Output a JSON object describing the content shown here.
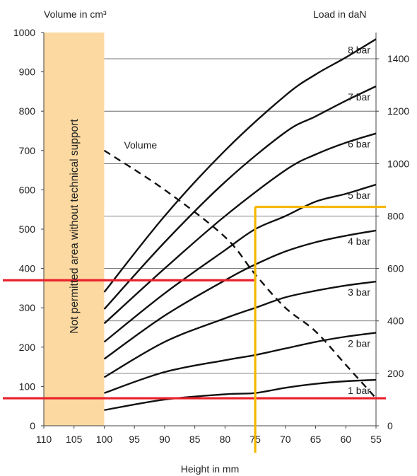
{
  "chart_data": {
    "type": "line",
    "left_axis_label": "Volume in cm³",
    "right_axis_label": "Load in daN",
    "xlabel": "Height in mm",
    "x_reversed": true,
    "xlim": [
      110,
      55
    ],
    "ylim_left": [
      0,
      1000
    ],
    "ylim_right": [
      0,
      1500
    ],
    "x_ticks": [
      110,
      105,
      100,
      95,
      90,
      85,
      80,
      75,
      70,
      65,
      60,
      55
    ],
    "left_ticks": [
      0,
      100,
      200,
      300,
      400,
      500,
      600,
      700,
      800,
      900,
      1000
    ],
    "right_ticks": [
      0,
      200,
      400,
      600,
      800,
      1000,
      1200,
      1400
    ],
    "right_gridlines": [
      200,
      400,
      600,
      800,
      1000,
      1200,
      1400
    ],
    "restricted_area": {
      "x_from": 110,
      "x_to": 100,
      "label": "Not permitted area without technical support",
      "color": "#FCD9A0"
    },
    "series": [
      {
        "name": "8 bar",
        "axis": "right",
        "x": [
          100,
          90,
          80,
          70,
          65,
          60,
          55
        ],
        "y": [
          510,
          800,
          1050,
          1260,
          1340,
          1405,
          1475
        ]
      },
      {
        "name": "7 bar",
        "axis": "right",
        "x": [
          100,
          90,
          80,
          70,
          65,
          60,
          55
        ],
        "y": [
          445,
          700,
          930,
          1120,
          1180,
          1240,
          1295
        ]
      },
      {
        "name": "6 bar",
        "axis": "right",
        "x": [
          100,
          90,
          80,
          70,
          65,
          60,
          55
        ],
        "y": [
          390,
          600,
          800,
          975,
          1035,
          1080,
          1115
        ]
      },
      {
        "name": "5 bar",
        "axis": "right",
        "x": [
          100,
          90,
          80,
          75,
          70,
          65,
          60,
          55
        ],
        "y": [
          320,
          505,
          670,
          750,
          800,
          855,
          885,
          920
        ]
      },
      {
        "name": "4 bar",
        "axis": "right",
        "x": [
          100,
          90,
          80,
          75,
          70,
          65,
          60,
          55
        ],
        "y": [
          255,
          420,
          555,
          615,
          665,
          700,
          725,
          745
        ]
      },
      {
        "name": "3 bar",
        "axis": "right",
        "x": [
          100,
          90,
          80,
          75,
          70,
          65,
          60,
          55
        ],
        "y": [
          185,
          320,
          410,
          450,
          490,
          515,
          535,
          550
        ]
      },
      {
        "name": "2 bar",
        "axis": "right",
        "x": [
          100,
          90,
          80,
          75,
          70,
          65,
          60,
          55
        ],
        "y": [
          125,
          205,
          250,
          270,
          295,
          320,
          340,
          355
        ]
      },
      {
        "name": "1 bar",
        "axis": "right",
        "x": [
          100,
          90,
          80,
          75,
          70,
          65,
          60,
          55
        ],
        "y": [
          60,
          100,
          120,
          125,
          145,
          160,
          170,
          175
        ]
      },
      {
        "name": "Volume",
        "axis": "left",
        "dashed": true,
        "x": [
          100,
          90,
          80,
          75,
          70,
          65,
          60,
          55
        ],
        "y": [
          700,
          600,
          480,
          385,
          300,
          240,
          155,
          70
        ]
      }
    ],
    "guide_lines": [
      {
        "color": "#E8202A",
        "orientation": "horizontal",
        "axis": "left",
        "value": 370,
        "x_from": 110,
        "x_to": 75
      },
      {
        "color": "#E8202A",
        "orientation": "horizontal",
        "axis": "left",
        "value": 70,
        "x_from": 110,
        "x_to": 55
      },
      {
        "color": "#F5B800",
        "orientation": "vertical",
        "value": 75,
        "y_from": 0,
        "y_to": 835,
        "axis": "right"
      },
      {
        "color": "#F5B800",
        "orientation": "horizontal",
        "axis": "right",
        "value": 835,
        "x_from": 75,
        "x_to": 55
      }
    ]
  }
}
